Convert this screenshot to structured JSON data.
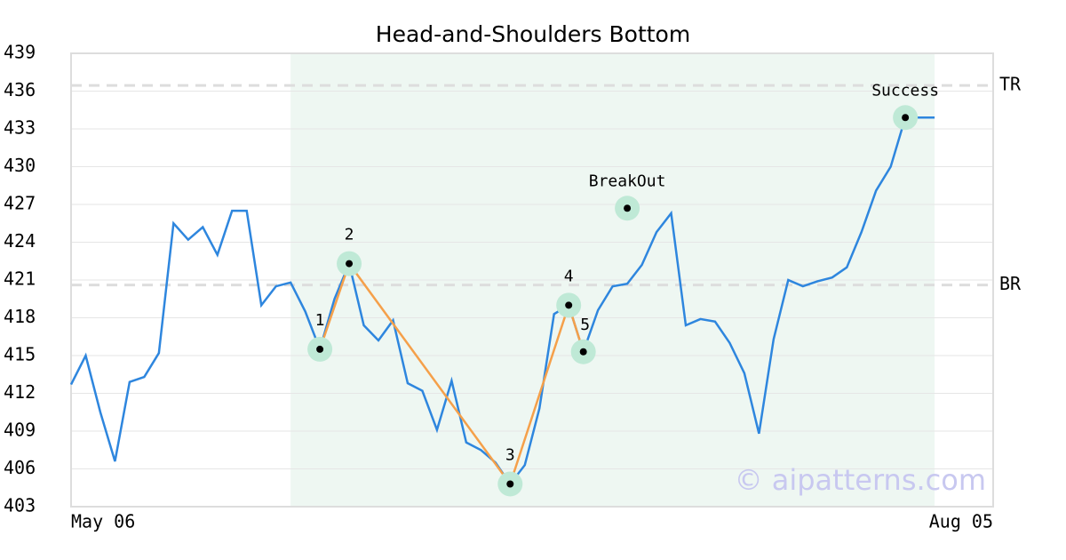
{
  "chart_data": {
    "type": "line",
    "title": "Head-and-Shoulders Bottom",
    "x": [
      0,
      1,
      2,
      3,
      4,
      5,
      6,
      7,
      8,
      9,
      10,
      11,
      12,
      13,
      14,
      15,
      16,
      17,
      18,
      19,
      20,
      21,
      22,
      23,
      24,
      25,
      26,
      27,
      28,
      29,
      30,
      31,
      32,
      33,
      34,
      35,
      36,
      37,
      38,
      39,
      40,
      41,
      42,
      43,
      44,
      45,
      46,
      47,
      48,
      49,
      50,
      51,
      52,
      53,
      54,
      55,
      56,
      57,
      58,
      59
    ],
    "series": [
      {
        "color": "#2e86de",
        "values": [
          412.7,
          415.0,
          410.5,
          406.6,
          412.9,
          413.3,
          415.2,
          425.5,
          424.2,
          425.2,
          423.0,
          426.5,
          426.5,
          419.0,
          420.5,
          420.8,
          418.5,
          415.5,
          419.5,
          422.3,
          417.4,
          416.2,
          417.8,
          412.8,
          412.2,
          409.1,
          413.0,
          408.1,
          407.5,
          406.5,
          404.8,
          406.3,
          410.8,
          418.3,
          419.0,
          415.3,
          418.6,
          420.5,
          420.7,
          422.2,
          424.8,
          426.3,
          417.4,
          417.9,
          417.7,
          416.0,
          413.6,
          408.8,
          416.3,
          421.0,
          420.5,
          420.9,
          421.2,
          422.0,
          424.8,
          428.1,
          430.0,
          433.9,
          433.9,
          433.9
        ]
      }
    ],
    "pattern": {
      "color": "#f5a04a",
      "labels": [
        "1",
        "2",
        "3",
        "4",
        "5"
      ],
      "x": [
        17,
        19,
        30,
        34,
        35
      ],
      "values": [
        415.5,
        422.3,
        404.8,
        419.0,
        415.3
      ]
    },
    "annotations": [
      {
        "text": "BreakOut",
        "x": 38,
        "value": 426.7
      },
      {
        "text": "Success",
        "x": 57,
        "value": 433.9
      }
    ],
    "hlines": [
      {
        "label": "TR",
        "value": 436.45
      },
      {
        "label": "BR",
        "value": 420.6
      }
    ],
    "highlight_range": [
      15,
      59
    ],
    "watermark": "© aipatterns.com",
    "xlim": [
      0,
      63
    ],
    "xticks": [
      {
        "value": 0,
        "label": "May 06"
      },
      {
        "value": 63,
        "label": "Aug 05"
      }
    ],
    "ylim": [
      403,
      439
    ],
    "yticks": [
      403,
      406,
      409,
      412,
      415,
      418,
      421,
      424,
      427,
      430,
      433,
      436,
      439
    ],
    "grid": true
  }
}
